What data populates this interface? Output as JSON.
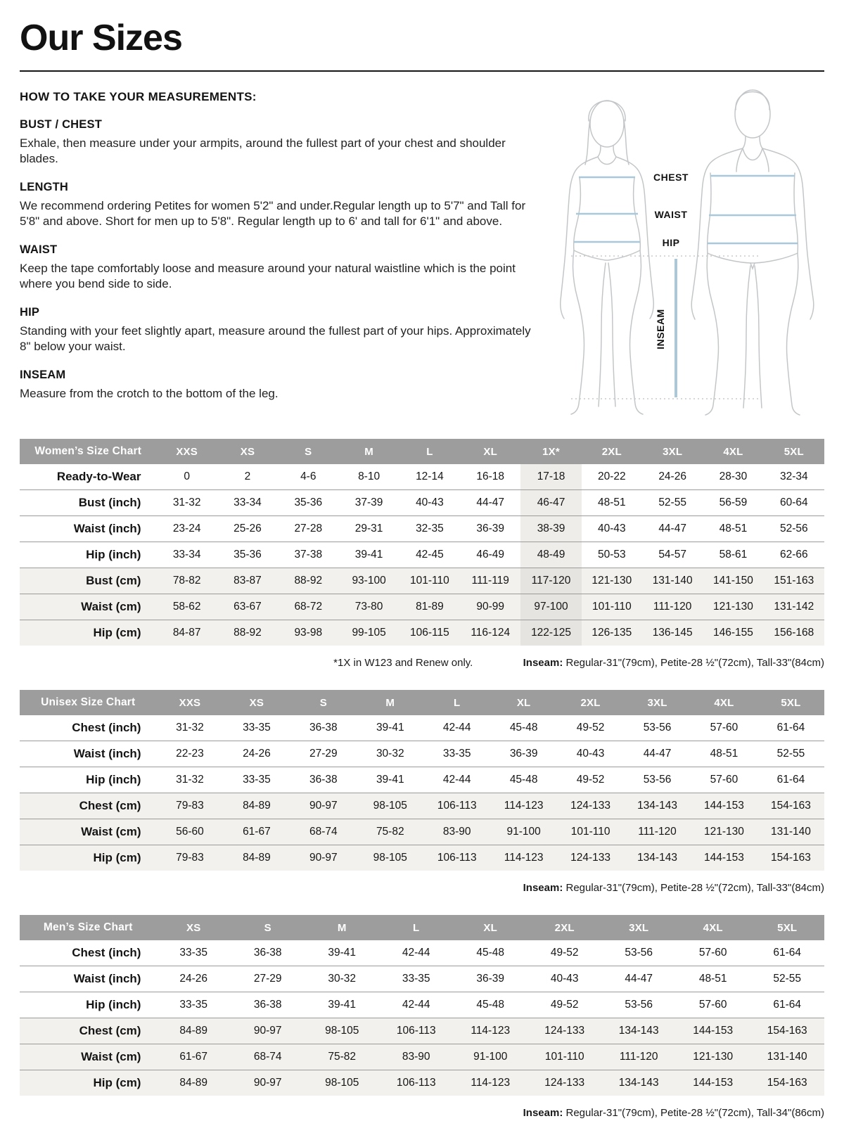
{
  "title": "Our Sizes",
  "how_to": {
    "heading": "HOW TO TAKE YOUR MEASUREMENTS:",
    "sections": [
      {
        "heading": "BUST / CHEST",
        "body": "Exhale, then measure under your armpits, around the fullest part of your chest and shoulder blades."
      },
      {
        "heading": "LENGTH",
        "body": "We recommend ordering Petites for women 5'2\" and under.Regular length up to 5'7\" and Tall for 5'8\" and above. Short for men up to 5'8\". Regular length up to 6' and tall for 6'1\" and above."
      },
      {
        "heading": "WAIST",
        "body": "Keep the tape comfortably loose and measure around your natural waistline which is the point where you bend side to side."
      },
      {
        "heading": "HIP",
        "body": "Standing with your feet slightly apart, measure around the fullest part of your hips. Approximately 8\" below your waist."
      },
      {
        "heading": "INSEAM",
        "body": "Measure from the crotch to the bottom of the leg."
      }
    ]
  },
  "diagram": {
    "labels": {
      "chest": "CHEST",
      "waist": "WAIST",
      "hip": "HIP",
      "inseam": "INSEAM"
    },
    "accent_color": "#a9c8d9",
    "outline_color": "#c3c6c8"
  },
  "inseam_label": "Inseam:",
  "colors": {
    "header_bg": "#9d9d9d",
    "row_shade": "#f2f1ee",
    "highlight_col": "#eeedea"
  },
  "women": {
    "title": "Women’s Size Chart",
    "sizes": [
      "XXS",
      "XS",
      "S",
      "M",
      "L",
      "XL",
      "1X*",
      "2XL",
      "3XL",
      "4XL",
      "5XL"
    ],
    "highlight": 6,
    "rows": [
      {
        "label": "Ready-to-Wear",
        "shade": false,
        "values": [
          "0",
          "2",
          "4-6",
          "8-10",
          "12-14",
          "16-18",
          "17-18",
          "20-22",
          "24-26",
          "28-30",
          "32-34"
        ]
      },
      {
        "label": "Bust (inch)",
        "shade": false,
        "values": [
          "31-32",
          "33-34",
          "35-36",
          "37-39",
          "40-43",
          "44-47",
          "46-47",
          "48-51",
          "52-55",
          "56-59",
          "60-64"
        ]
      },
      {
        "label": "Waist (inch)",
        "shade": false,
        "values": [
          "23-24",
          "25-26",
          "27-28",
          "29-31",
          "32-35",
          "36-39",
          "38-39",
          "40-43",
          "44-47",
          "48-51",
          "52-56"
        ]
      },
      {
        "label": "Hip (inch)",
        "shade": false,
        "values": [
          "33-34",
          "35-36",
          "37-38",
          "39-41",
          "42-45",
          "46-49",
          "48-49",
          "50-53",
          "54-57",
          "58-61",
          "62-66"
        ]
      },
      {
        "label": "Bust (cm)",
        "shade": true,
        "values": [
          "78-82",
          "83-87",
          "88-92",
          "93-100",
          "101-110",
          "111-119",
          "117-120",
          "121-130",
          "131-140",
          "141-150",
          "151-163"
        ]
      },
      {
        "label": "Waist (cm)",
        "shade": true,
        "values": [
          "58-62",
          "63-67",
          "68-72",
          "73-80",
          "81-89",
          "90-99",
          "97-100",
          "101-110",
          "111-120",
          "121-130",
          "131-142"
        ]
      },
      {
        "label": "Hip (cm)",
        "shade": true,
        "values": [
          "84-87",
          "88-92",
          "93-98",
          "99-105",
          "106-115",
          "116-124",
          "122-125",
          "126-135",
          "136-145",
          "146-155",
          "156-168"
        ]
      }
    ],
    "footnote": "*1X in W123 and Renew only.",
    "inseam": " Regular-31\"(79cm), Petite-28 ½\"(72cm), Tall-33\"(84cm)"
  },
  "unisex": {
    "title": "Unisex Size Chart",
    "sizes": [
      "XXS",
      "XS",
      "S",
      "M",
      "L",
      "XL",
      "2XL",
      "3XL",
      "4XL",
      "5XL"
    ],
    "rows": [
      {
        "label": "Chest (inch)",
        "shade": false,
        "values": [
          "31-32",
          "33-35",
          "36-38",
          "39-41",
          "42-44",
          "45-48",
          "49-52",
          "53-56",
          "57-60",
          "61-64"
        ]
      },
      {
        "label": "Waist (inch)",
        "shade": false,
        "values": [
          "22-23",
          "24-26",
          "27-29",
          "30-32",
          "33-35",
          "36-39",
          "40-43",
          "44-47",
          "48-51",
          "52-55"
        ]
      },
      {
        "label": "Hip (inch)",
        "shade": false,
        "values": [
          "31-32",
          "33-35",
          "36-38",
          "39-41",
          "42-44",
          "45-48",
          "49-52",
          "53-56",
          "57-60",
          "61-64"
        ]
      },
      {
        "label": "Chest (cm)",
        "shade": true,
        "values": [
          "79-83",
          "84-89",
          "90-97",
          "98-105",
          "106-113",
          "114-123",
          "124-133",
          "134-143",
          "144-153",
          "154-163"
        ]
      },
      {
        "label": "Waist (cm)",
        "shade": true,
        "values": [
          "56-60",
          "61-67",
          "68-74",
          "75-82",
          "83-90",
          "91-100",
          "101-110",
          "111-120",
          "121-130",
          "131-140"
        ]
      },
      {
        "label": "Hip (cm)",
        "shade": true,
        "values": [
          "79-83",
          "84-89",
          "90-97",
          "98-105",
          "106-113",
          "114-123",
          "124-133",
          "134-143",
          "144-153",
          "154-163"
        ]
      }
    ],
    "inseam": " Regular-31\"(79cm), Petite-28 ½\"(72cm), Tall-33\"(84cm)"
  },
  "men": {
    "title": "Men’s Size Chart",
    "sizes": [
      "XS",
      "S",
      "M",
      "L",
      "XL",
      "2XL",
      "3XL",
      "4XL",
      "5XL"
    ],
    "rows": [
      {
        "label": "Chest (inch)",
        "shade": false,
        "values": [
          "33-35",
          "36-38",
          "39-41",
          "42-44",
          "45-48",
          "49-52",
          "53-56",
          "57-60",
          "61-64"
        ]
      },
      {
        "label": "Waist (inch)",
        "shade": false,
        "values": [
          "24-26",
          "27-29",
          "30-32",
          "33-35",
          "36-39",
          "40-43",
          "44-47",
          "48-51",
          "52-55"
        ]
      },
      {
        "label": "Hip (inch)",
        "shade": false,
        "values": [
          "33-35",
          "36-38",
          "39-41",
          "42-44",
          "45-48",
          "49-52",
          "53-56",
          "57-60",
          "61-64"
        ]
      },
      {
        "label": "Chest (cm)",
        "shade": true,
        "values": [
          "84-89",
          "90-97",
          "98-105",
          "106-113",
          "114-123",
          "124-133",
          "134-143",
          "144-153",
          "154-163"
        ]
      },
      {
        "label": "Waist (cm)",
        "shade": true,
        "values": [
          "61-67",
          "68-74",
          "75-82",
          "83-90",
          "91-100",
          "101-110",
          "111-120",
          "121-130",
          "131-140"
        ]
      },
      {
        "label": "Hip (cm)",
        "shade": true,
        "values": [
          "84-89",
          "90-97",
          "98-105",
          "106-113",
          "114-123",
          "124-133",
          "134-143",
          "144-153",
          "154-163"
        ]
      }
    ],
    "inseam": " Regular-31\"(79cm), Petite-28 ½\"(72cm), Tall-34\"(86cm)"
  }
}
